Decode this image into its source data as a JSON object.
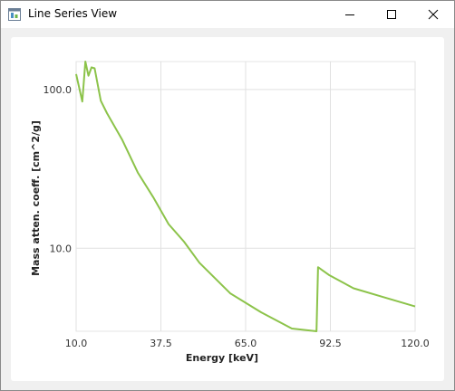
{
  "window": {
    "title": "Line Series View",
    "app_icon": "window-app-icon",
    "controls": [
      "minimize-icon",
      "maximize-icon",
      "close-icon"
    ]
  },
  "chart_data": {
    "type": "line",
    "title": "",
    "xlabel": "Energy [keV]",
    "ylabel": "Mass atten. coeff. [cm^2/g]",
    "xlim": [
      10.0,
      120.0
    ],
    "ylim": [
      3.0,
      150.0
    ],
    "yscale": "log",
    "grid": true,
    "legend": "none",
    "x_ticks": [
      "10.0",
      "37.5",
      "65.0",
      "92.5",
      "120.0"
    ],
    "y_ticks": [
      "10.0",
      "100.0"
    ],
    "series": [
      {
        "name": "mass attenuation coefficient",
        "color": "#8cc34a",
        "x": [
          10,
          12,
          13,
          14,
          15,
          16,
          18,
          20,
          25,
          30,
          35,
          40,
          45,
          50,
          60,
          70,
          80,
          88,
          88.5,
          92,
          100,
          110,
          120
        ],
        "y": [
          125,
          84,
          150,
          122,
          138,
          136,
          85,
          71,
          48,
          30,
          21,
          14.2,
          11,
          8.1,
          5.2,
          3.95,
          3.12,
          2.7,
          7.6,
          6.8,
          5.6,
          4.9,
          4.3
        ]
      }
    ]
  }
}
